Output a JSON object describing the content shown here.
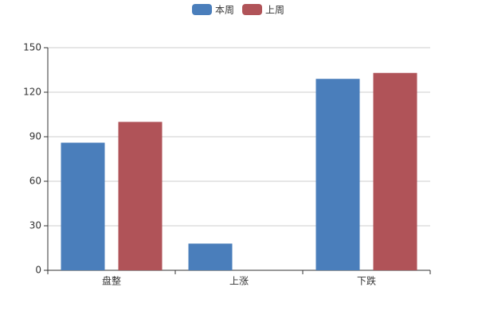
{
  "chart_data": {
    "type": "bar",
    "categories": [
      "盘整",
      "上涨",
      "下跌"
    ],
    "series": [
      {
        "name": "本周",
        "color": "#4a7ebb",
        "values": [
          86,
          18,
          129
        ]
      },
      {
        "name": "上周",
        "color": "#b05358",
        "values": [
          100,
          0,
          133
        ]
      }
    ],
    "ylim": [
      0,
      150
    ],
    "yticks": [
      0,
      30,
      60,
      90,
      120,
      150
    ],
    "grid": true,
    "legend": "top"
  }
}
